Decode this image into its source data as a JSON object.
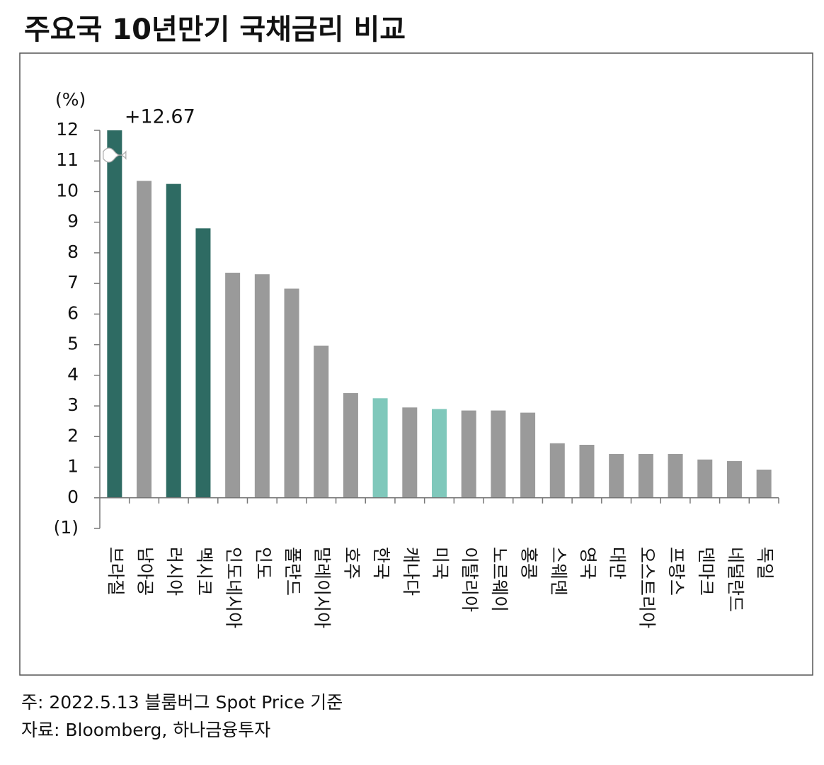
{
  "chart_data": {
    "type": "bar",
    "title": "주요국 10년만기 국채금리 비교",
    "y_label": "(%)",
    "categories": [
      "브라질",
      "남아공",
      "러시아",
      "멕시코",
      "인도네시아",
      "인도",
      "폴란드",
      "말레이시아",
      "호주",
      "한국",
      "캐나다",
      "미국",
      "이탈리아",
      "노르웨이",
      "홍콩",
      "스웨덴",
      "영국",
      "대만",
      "오스트리아",
      "프랑스",
      "덴마크",
      "네덜란드",
      "독일"
    ],
    "values": [
      12.67,
      10.35,
      10.25,
      8.8,
      7.35,
      7.3,
      6.83,
      4.97,
      3.42,
      3.25,
      2.95,
      2.9,
      2.85,
      2.85,
      2.78,
      1.78,
      1.73,
      1.43,
      1.43,
      1.43,
      1.25,
      1.2,
      0.92
    ],
    "value_labels": [
      "+12.67",
      null,
      null,
      null,
      null,
      null,
      null,
      null,
      null,
      null,
      null,
      null,
      null,
      null,
      null,
      null,
      null,
      null,
      null,
      null,
      null,
      null,
      null
    ],
    "colors": [
      "#2e6b63",
      "#9a9a9a",
      "#2e6b63",
      "#2e6b63",
      "#9a9a9a",
      "#9a9a9a",
      "#9a9a9a",
      "#9a9a9a",
      "#9a9a9a",
      "#7fc8bb",
      "#9a9a9a",
      "#7fc8bb",
      "#9a9a9a",
      "#9a9a9a",
      "#9a9a9a",
      "#9a9a9a",
      "#9a9a9a",
      "#9a9a9a",
      "#9a9a9a",
      "#9a9a9a",
      "#9a9a9a",
      "#9a9a9a",
      "#9a9a9a"
    ],
    "ylim": [
      -1,
      12
    ],
    "yticks": [
      {
        "value": -1,
        "label": "(1)"
      },
      0,
      1,
      2,
      3,
      4,
      5,
      6,
      7,
      8,
      9,
      10,
      11,
      12
    ],
    "axis_break": true,
    "notes": [
      "주: 2022.5.13 블룸버그 Spot Price 기준",
      "자료: Bloomberg, 하나금융투자"
    ]
  }
}
